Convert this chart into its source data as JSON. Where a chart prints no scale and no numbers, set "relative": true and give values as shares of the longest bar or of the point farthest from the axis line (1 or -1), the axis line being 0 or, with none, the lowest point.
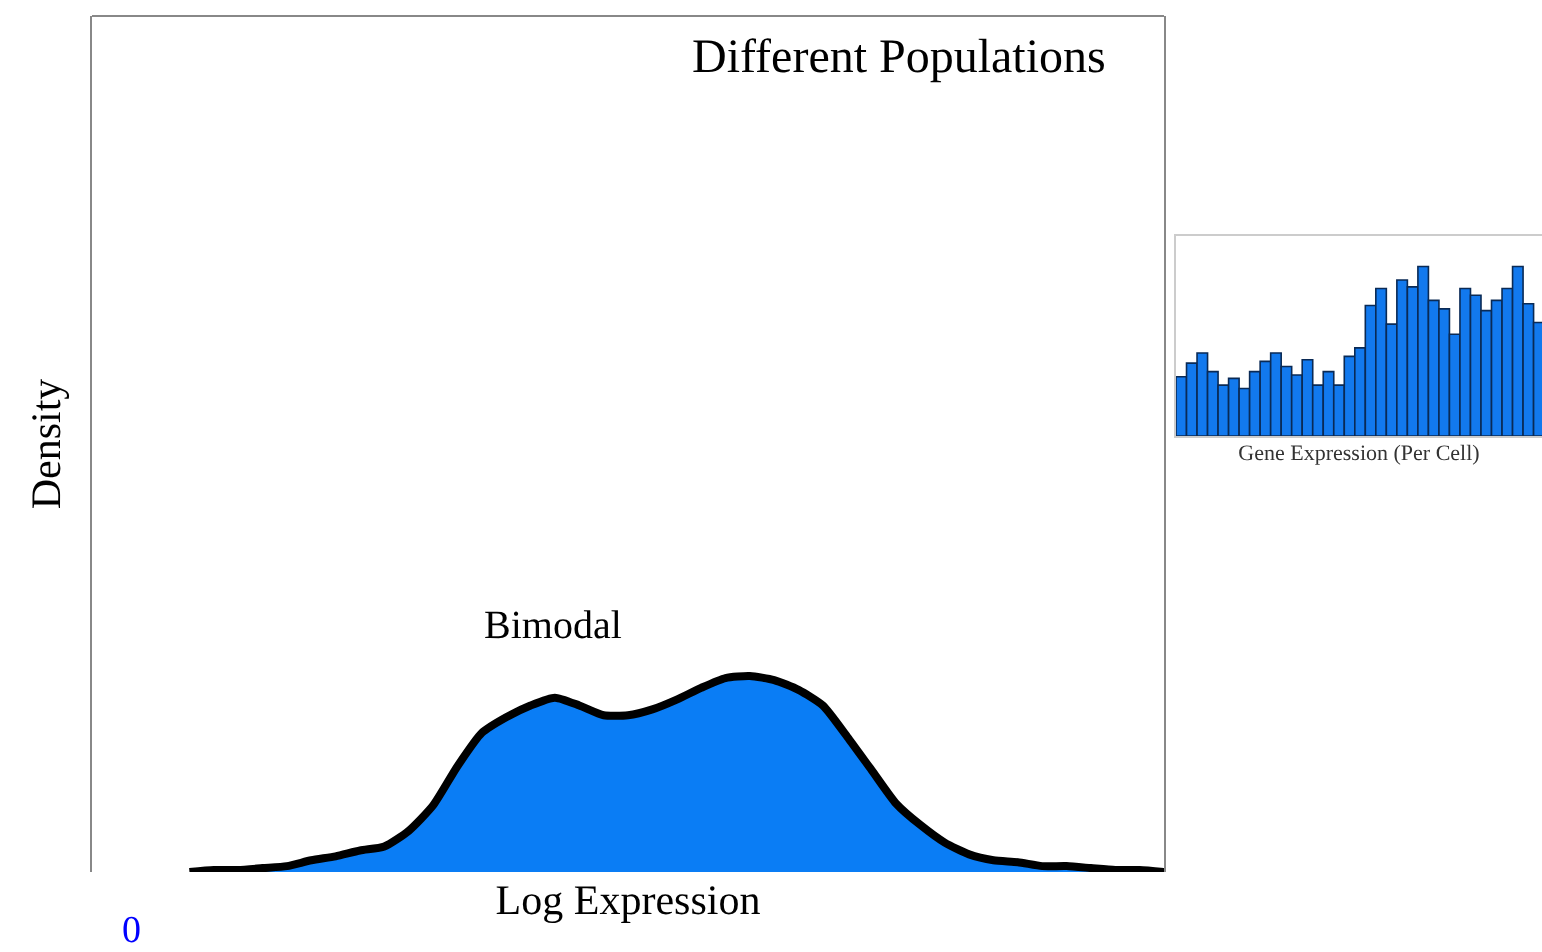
{
  "chart_data": [
    {
      "type": "area",
      "relative": true,
      "xlabel": "Log Expression",
      "ylabel": "Density",
      "annotations": [
        "Bimodal",
        "0",
        "Different Populations"
      ],
      "color": "#0a7df5",
      "categories": [
        null,
        null,
        null,
        null,
        null,
        null,
        null,
        null,
        null,
        null,
        null,
        null,
        null,
        null,
        null,
        null,
        null,
        null,
        null,
        null,
        null,
        null,
        null,
        null,
        null,
        null,
        null,
        null,
        null,
        null,
        null,
        null,
        null,
        null,
        null,
        null,
        null,
        null,
        null,
        null,
        null,
        null,
        null,
        null,
        null
      ],
      "values": [
        null,
        null,
        null,
        null,
        0,
        0.01,
        0.01,
        0.02,
        0.03,
        0.06,
        0.08,
        0.11,
        0.13,
        0.21,
        0.34,
        0.54,
        0.71,
        0.79,
        0.85,
        0.89,
        0.85,
        0.8,
        0.8,
        0.83,
        0.88,
        0.94,
        0.99,
        1.0,
        0.98,
        0.93,
        0.85,
        0.69,
        0.52,
        0.35,
        0.24,
        0.15,
        0.09,
        0.06,
        0.05,
        0.03,
        0.03,
        0.02,
        0.01,
        0.01,
        0
      ]
    },
    {
      "type": "bar",
      "relative": true,
      "xlabel": "Gene Expression (Per Cell)",
      "color": "#1279ee",
      "categories": [
        null,
        null,
        null,
        null,
        null,
        null,
        null,
        null,
        null,
        null,
        null,
        null,
        null,
        null,
        null,
        null,
        null,
        null,
        null,
        null,
        null,
        null,
        null,
        null,
        null,
        null,
        null,
        null,
        null,
        null,
        null,
        null,
        null,
        null,
        null
      ],
      "values": [
        0.35,
        0.43,
        0.49,
        0.38,
        0.3,
        0.34,
        0.28,
        0.38,
        0.44,
        0.49,
        0.41,
        0.36,
        0.45,
        0.3,
        0.38,
        0.3,
        0.47,
        0.52,
        0.77,
        0.87,
        0.66,
        0.92,
        0.88,
        1.0,
        0.8,
        0.75,
        0.6,
        0.87,
        0.83,
        0.74,
        0.8,
        0.87,
        1.0,
        0.78,
        0.67
      ]
    }
  ]
}
